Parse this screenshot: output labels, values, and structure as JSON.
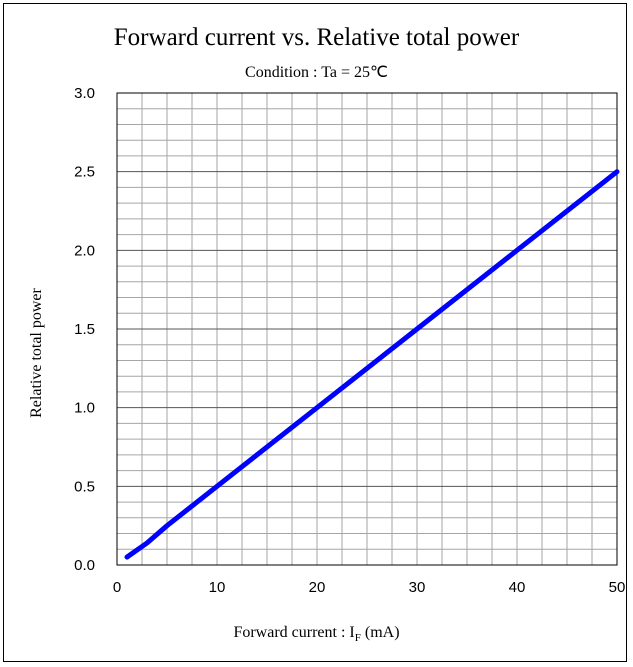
{
  "chart_data": {
    "type": "line",
    "title": "Forward current vs. Relative total power",
    "subtitle": "Condition : Ta = 25℃",
    "xlabel": {
      "main": "Forward current : I",
      "sub": "F",
      "unit": " (mA)"
    },
    "ylabel": "Relative total power",
    "xlim": [
      0,
      50
    ],
    "ylim": [
      0,
      3.0
    ],
    "x_ticks": [
      0,
      10,
      20,
      30,
      40,
      50
    ],
    "x_tick_labels": [
      "0",
      "10",
      "20",
      "30",
      "40",
      "50"
    ],
    "y_ticks": [
      0,
      0.5,
      1.0,
      1.5,
      2.0,
      2.5,
      3.0
    ],
    "y_tick_labels": [
      "0.0",
      "0.5",
      "1.0",
      "1.5",
      "2.0",
      "2.5",
      "3.0"
    ],
    "grid": true,
    "series": [
      {
        "color": "#0000ff",
        "x": [
          1,
          3,
          5,
          10,
          20,
          30,
          40,
          50
        ],
        "y": [
          0.05,
          0.14,
          0.25,
          0.5,
          1.0,
          1.5,
          2.0,
          2.5
        ]
      }
    ]
  }
}
